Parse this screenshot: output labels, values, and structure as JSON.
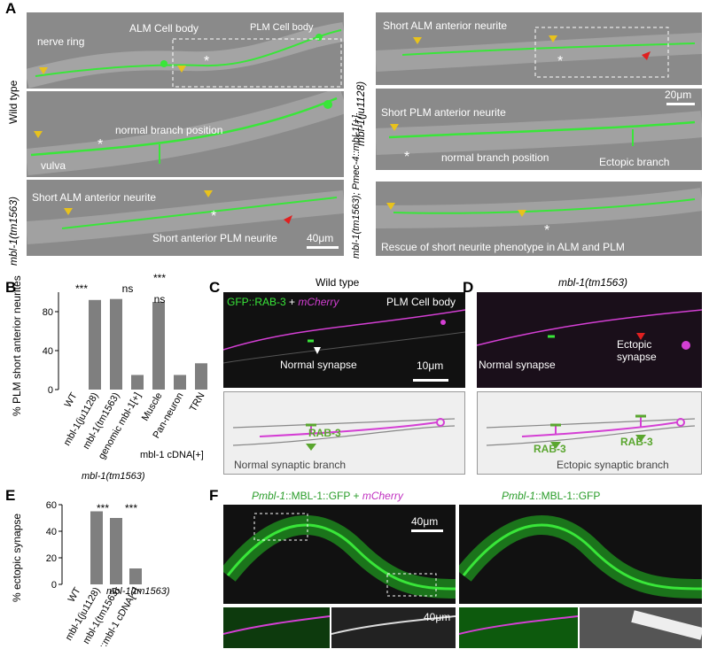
{
  "panels": {
    "A": {
      "letter": "A",
      "row_labels": {
        "wild_type": "Wild type",
        "mbl1_ju1128": "mbl-1(ju1128)",
        "mbl1_tm1563": "mbl-1(tm1563)",
        "rescue": "mbl-1(tm1563); Pmec-4::mbl-1[+]"
      },
      "wt_top": {
        "nerve_ring": "nerve ring",
        "alm_cell_body": "ALM Cell body",
        "plm_cell_body": "PLM Cell body"
      },
      "wt_zoom": {
        "normal_branch": "normal branch position",
        "vulva": "vulva"
      },
      "tm1563": {
        "short_alm": "Short ALM anterior neurite",
        "short_plm": "Short anterior PLM neurite",
        "scale": "40μm"
      },
      "ju1128_top": {
        "short_alm": "Short ALM anterior neurite"
      },
      "ju1128_zoom": {
        "scale": "20μm",
        "short_plm": "Short PLM anterior neurite",
        "normal_branch": "normal branch position",
        "ectopic_branch": "Ectopic branch"
      },
      "rescue": {
        "caption": "Rescue of short neurite phenotype in ALM and PLM"
      }
    },
    "B": {
      "letter": "B",
      "ylabel": "% PLM short anterior neurites",
      "genotype_group": "mbl-1(tm1563)",
      "cdna_group": "mbl-1 cDNA[+]",
      "sig": [
        "***",
        "ns",
        "***",
        "ns"
      ]
    },
    "C": {
      "letter": "C",
      "title": "Wild type",
      "channel_green": "GFP::RAB-3",
      "plus": " + ",
      "channel_magenta": "mCherry",
      "plm_cell_body": "PLM Cell body",
      "normal_synapse": "Normal synapse",
      "scale": "10μm",
      "schematic_rab3": "RAB-3",
      "schematic_caption": "Normal synaptic branch"
    },
    "D": {
      "letter": "D",
      "title": "mbl-1(tm1563)",
      "normal_synapse": "Normal synapse",
      "ectopic_synapse_1": "Ectopic",
      "ectopic_synapse_2": "synapse",
      "schematic_rab3_left": "RAB-3",
      "schematic_rab3_right": "RAB-3",
      "schematic_caption": "Ectopic synaptic branch"
    },
    "E": {
      "letter": "E",
      "ylabel": "% ectopic synapse",
      "genotype_group": "mbl-1(tm1563)",
      "sig": [
        "***",
        "***"
      ]
    },
    "F": {
      "letter": "F",
      "left_title_a": "Pmbl-1",
      "left_title_b": "::MBL-1::GFP + ",
      "left_title_c": "mCherry",
      "right_title_a": "Pmbl-1",
      "right_title_b": "::MBL-1::GFP",
      "scale_top": "40μm",
      "scale_bottom": "40μm"
    }
  },
  "colors": {
    "gfp": "#39e639",
    "mcherry": "#d43fd4",
    "arrow_yellow": "#e8c21c",
    "arrow_red": "#e02020",
    "bar": "#7f7f7f",
    "schematic_green": "#5aa62f"
  },
  "chart_data": [
    {
      "type": "bar",
      "title": "",
      "ylabel": "% PLM short anterior neurites",
      "ylim": [
        0,
        100
      ],
      "yticks": [
        0,
        40,
        80
      ],
      "categories": [
        "WT",
        "mbl-1(ju1128)",
        "mbl-1(tm1563)",
        "genomic mbl-1[+]",
        "Muscle",
        "Pan-neuron",
        "TRN"
      ],
      "values": [
        0,
        92,
        93,
        15,
        90,
        15,
        27
      ]
    },
    {
      "type": "bar",
      "title": "",
      "ylabel": "% ectopic synapse",
      "ylim": [
        0,
        60
      ],
      "yticks": [
        0,
        20,
        40,
        60
      ],
      "categories": [
        "WT",
        "mbl-1(ju1128)",
        "mbl-1(tm1563)",
        "TRN::mbl-1 cDNA[+]"
      ],
      "values": [
        0,
        55,
        50,
        12
      ]
    }
  ]
}
